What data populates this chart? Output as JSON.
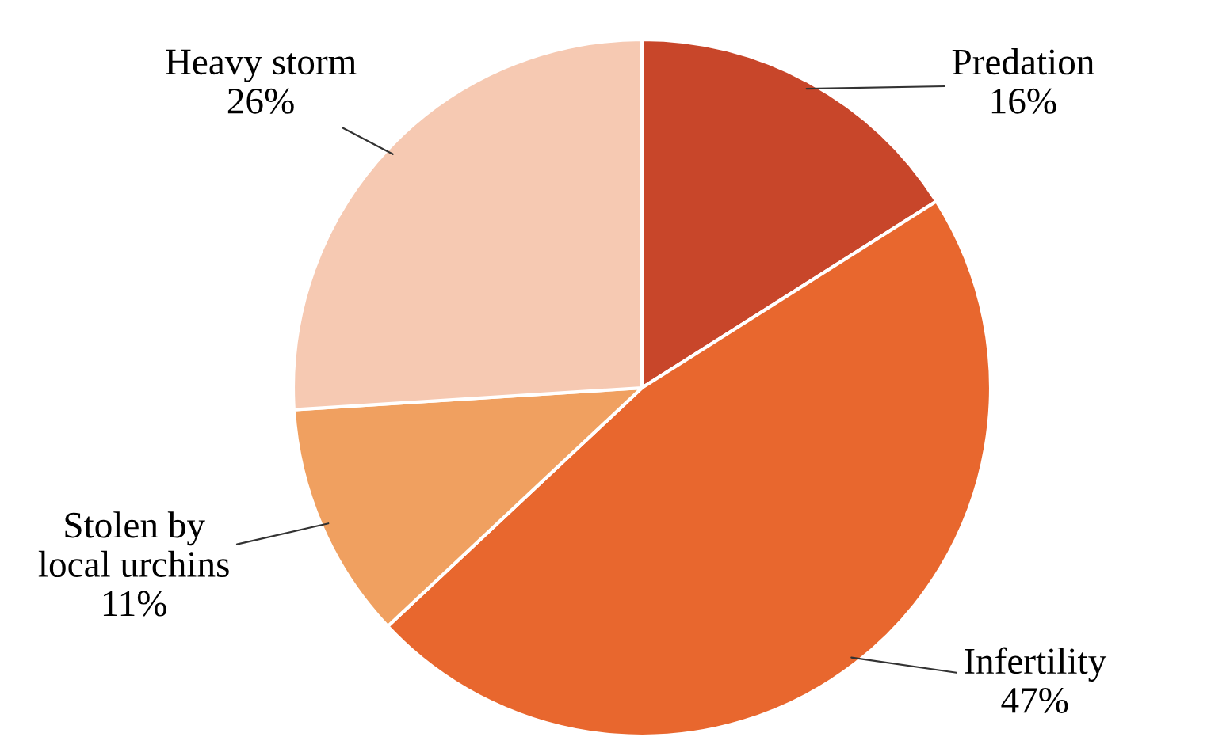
{
  "chart_data": {
    "type": "pie",
    "categories": [
      "Predation",
      "Infertility",
      "Stolen by\nlocal urchins",
      "Heavy storm"
    ],
    "values": [
      16,
      47,
      11,
      26
    ],
    "value_labels": [
      "16%",
      "47%",
      "11%",
      "26%"
    ],
    "colors": [
      "#c8462a",
      "#e8672e",
      "#f0a060",
      "#f6c9b2"
    ],
    "legend": false
  }
}
